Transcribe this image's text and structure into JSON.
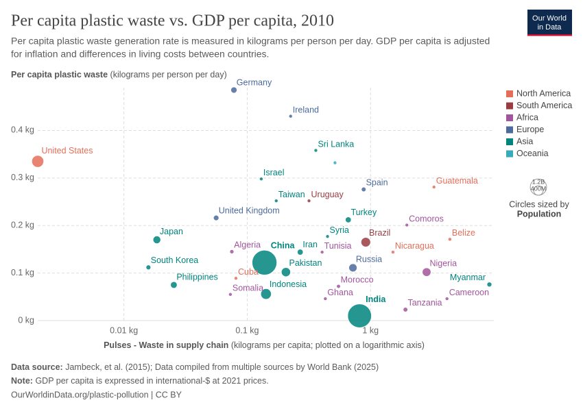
{
  "logo": [
    "Our World",
    "in Data"
  ],
  "chart_data": {
    "type": "scatter",
    "title": "Per capita plastic waste vs. GDP per capita, 2010",
    "subtitle": [
      "Per capita plastic waste generation rate is measured in kilograms per person per day. GDP per capita is adjusted",
      "for inflation and differences in living costs between countries."
    ],
    "y_label": "Per capita plastic waste",
    "y_label_note": "(kilograms per person per day)",
    "x_label": "Pulses - Waste in supply chain",
    "x_label_note": "(kilograms per capita; plotted on a logarithmic axis)",
    "x_log": true,
    "grid": true,
    "xlim": [
      0.002,
      10
    ],
    "xticks": [
      {
        "value": 0.01,
        "label": "0.01 kg"
      },
      {
        "value": 0.1,
        "label": "0.1 kg"
      },
      {
        "value": 1,
        "label": "1 kg"
      }
    ],
    "ylim": [
      0,
      0.49
    ],
    "yticks": [
      {
        "value": 0,
        "label": "0 kg"
      },
      {
        "value": 0.1,
        "label": "0.1 kg"
      },
      {
        "value": 0.2,
        "label": "0.2 kg"
      },
      {
        "value": 0.3,
        "label": "0.3 kg"
      },
      {
        "value": 0.4,
        "label": "0.4 kg"
      }
    ],
    "size_legend": {
      "title": "Circles sized by",
      "variable": "Population",
      "sizes": [
        {
          "value": 1200000000,
          "label": "1.2B"
        },
        {
          "value": 400000000,
          "label": "400M"
        }
      ]
    },
    "series": [
      {
        "name": "North America",
        "color": "#e56e5a",
        "labels": [
          "United States",
          "Guatemala",
          "Belize",
          "Nicaragua",
          "Cuba"
        ],
        "x": [
          0.002,
          3.27,
          4.4,
          1.52,
          0.081
        ],
        "values": [
          0.335,
          0.281,
          0.171,
          0.144,
          0.089
        ],
        "sizes": [
          309000000,
          14000000,
          320000,
          5800000,
          11000000
        ]
      },
      {
        "name": "South America",
        "color": "#9a3d43",
        "labels": [
          "Uruguay",
          "Brazil"
        ],
        "x": [
          0.317,
          0.915
        ],
        "values": [
          0.252,
          0.165
        ],
        "sizes": [
          3400000,
          196000000
        ]
      },
      {
        "name": "Africa",
        "color": "#a2559c",
        "labels": [
          "Comoros",
          "Algeria",
          "Tunisia",
          "Nigeria",
          "Morocco",
          "Somalia",
          "Cameroon",
          "Ghana",
          "Tanzania"
        ],
        "x": [
          1.97,
          0.075,
          0.405,
          2.85,
          0.55,
          0.073,
          4.17,
          0.43,
          1.92
        ],
        "values": [
          0.201,
          0.145,
          0.144,
          0.102,
          0.072,
          0.055,
          0.046,
          0.046,
          0.023
        ],
        "sizes": [
          700000,
          36000000,
          10600000,
          160000000,
          32000000,
          12000000,
          20000000,
          24000000,
          45000000
        ]
      },
      {
        "name": "Europe",
        "color": "#4c6a9c",
        "labels": [
          "Germany",
          "Ireland",
          "Spain",
          "United Kingdom",
          "Russia"
        ],
        "x": [
          0.078,
          0.225,
          0.88,
          0.056,
          0.72
        ],
        "values": [
          0.485,
          0.43,
          0.276,
          0.216,
          0.111
        ],
        "sizes": [
          81000000,
          4600000,
          46000000,
          63000000,
          143000000
        ]
      },
      {
        "name": "Asia",
        "color": "#00847e",
        "labels": [
          "Sri Lanka",
          "Israel",
          "Taiwan",
          "Turkey",
          "Japan",
          "Syria",
          "China",
          "Iran",
          "Pakistan",
          "South Korea",
          "Myanmar",
          "Philippines",
          "Indonesia",
          "India"
        ],
        "x": [
          0.36,
          0.13,
          0.172,
          0.66,
          0.0185,
          0.448,
          0.138,
          0.269,
          0.206,
          0.0158,
          9.2,
          0.0254,
          0.142,
          0.815
        ],
        "values": [
          0.358,
          0.298,
          0.252,
          0.212,
          0.17,
          0.177,
          0.122,
          0.144,
          0.102,
          0.112,
          0.076,
          0.075,
          0.056,
          0.01
        ],
        "sizes": [
          20000000,
          7600000,
          23000000,
          73000000,
          128000000,
          21000000,
          1340000000,
          74000000,
          180000000,
          49000000,
          50000000,
          94000000,
          242000000,
          1230000000
        ]
      },
      {
        "name": "Oceania",
        "color": "#38aaba",
        "labels": [
          null
        ],
        "x": [
          0.515
        ],
        "values": [
          0.332
        ],
        "sizes": [
          100000
        ]
      }
    ],
    "source_label": "Data source:",
    "source": "Jambeck, et al. (2015); Data compiled from multiple sources by World Bank (2025)",
    "note_label": "Note:",
    "note": "GDP per capita is expressed in international-$ at 2021 prices.",
    "url": "OurWorldinData.org/plastic-pollution | CC BY"
  }
}
